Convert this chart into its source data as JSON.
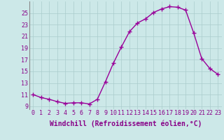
{
  "x": [
    0,
    1,
    2,
    3,
    4,
    5,
    6,
    7,
    8,
    9,
    10,
    11,
    12,
    13,
    14,
    15,
    16,
    17,
    18,
    19,
    20,
    21,
    22,
    23
  ],
  "y": [
    11.0,
    10.5,
    10.2,
    9.8,
    9.5,
    9.6,
    9.6,
    9.4,
    10.2,
    13.2,
    16.4,
    19.2,
    21.8,
    23.3,
    24.0,
    25.1,
    25.7,
    26.1,
    26.0,
    25.5,
    21.6,
    17.2,
    15.5,
    14.5
  ],
  "line_color": "#990099",
  "marker": "+",
  "marker_size": 4,
  "marker_linewidth": 1.0,
  "bg_color": "#cce8e8",
  "grid_color": "#aacccc",
  "xlabel": "Windchill (Refroidissement éolien,°C)",
  "xlabel_color": "#880088",
  "xlabel_fontsize": 7,
  "tick_color": "#880088",
  "tick_fontsize": 6,
  "ylim": [
    8.5,
    27
  ],
  "yticks": [
    9,
    11,
    13,
    15,
    17,
    19,
    21,
    23,
    25
  ],
  "xlim": [
    -0.5,
    23.5
  ],
  "line_width": 1.0
}
